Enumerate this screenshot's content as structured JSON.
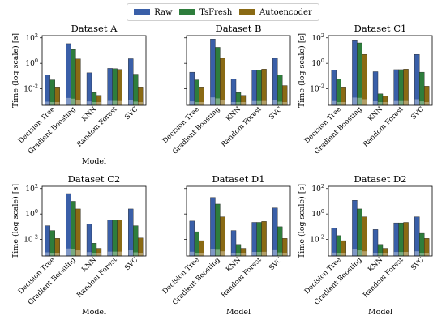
{
  "legend": [
    {
      "name": "Raw",
      "color": "#3a5fa8"
    },
    {
      "name": "TsFresh",
      "color": "#2e7d3c"
    },
    {
      "name": "Autoencoder",
      "color": "#8a6a14"
    }
  ],
  "chart_data": [
    {
      "type": "bar",
      "title": "Dataset A",
      "xlabel": "Model",
      "ylabel": "Time (log scale) [s]",
      "yscale": "log",
      "ylim": [
        0.0005,
        150
      ],
      "yticks": [
        "10^{-2}",
        "10^{0}",
        "10^{2}"
      ],
      "categories": [
        "Decision Tree",
        "Gradient Boosting",
        "KNN",
        "Random Forest",
        "SVC"
      ],
      "series": [
        {
          "name": "Raw",
          "values": [
            0.12,
            35,
            0.18,
            0.4,
            2.3
          ]
        },
        {
          "name": "TsFresh",
          "values": [
            0.05,
            12,
            0.005,
            0.38,
            0.14
          ]
        },
        {
          "name": "Autoencoder",
          "values": [
            0.012,
            2.2,
            0.003,
            0.33,
            0.012
          ]
        }
      ]
    },
    {
      "type": "bar",
      "title": "Dataset B",
      "xlabel": "",
      "ylabel": "",
      "yscale": "log",
      "ylim": [
        0.0005,
        150
      ],
      "yticks": [
        "",
        "",
        ""
      ],
      "categories": [
        "Decision Tree",
        "Gradient Boosting",
        "KNN",
        "Random Forest",
        "SVC"
      ],
      "series": [
        {
          "name": "Raw",
          "values": [
            0.2,
            80,
            0.06,
            0.3,
            2.5
          ]
        },
        {
          "name": "TsFresh",
          "values": [
            0.05,
            18,
            0.005,
            0.3,
            0.12
          ]
        },
        {
          "name": "Autoencoder",
          "values": [
            0.012,
            2.5,
            0.003,
            0.35,
            0.018
          ]
        }
      ]
    },
    {
      "type": "bar",
      "title": "Dataset C1",
      "xlabel": "",
      "ylabel": "Time (log scale) [s]",
      "yscale": "log",
      "ylim": [
        0.0005,
        150
      ],
      "yticks": [
        "10^{-2}",
        "10^{0}",
        "10^{2}"
      ],
      "categories": [
        "Decision Tree",
        "Gradient Boosting",
        "KNN",
        "Random Forest",
        "SVC"
      ],
      "series": [
        {
          "name": "Raw",
          "values": [
            0.3,
            60,
            0.22,
            0.32,
            5
          ]
        },
        {
          "name": "TsFresh",
          "values": [
            0.06,
            40,
            0.004,
            0.32,
            0.2
          ]
        },
        {
          "name": "Autoencoder",
          "values": [
            0.012,
            5,
            0.0028,
            0.35,
            0.016
          ]
        }
      ]
    },
    {
      "type": "bar",
      "title": "Dataset C2",
      "xlabel": "Model",
      "ylabel": "Time (log scale) [s]",
      "yscale": "log",
      "ylim": [
        0.0005,
        150
      ],
      "yticks": [
        "10^{-2}",
        "10^{0}",
        "10^{2}"
      ],
      "categories": [
        "Decision Tree",
        "Gradient Boosting",
        "KNN",
        "Random Forest",
        "SVC"
      ],
      "series": [
        {
          "name": "Raw",
          "values": [
            0.12,
            40,
            0.16,
            0.35,
            2.5
          ]
        },
        {
          "name": "TsFresh",
          "values": [
            0.05,
            10,
            0.005,
            0.35,
            0.12
          ]
        },
        {
          "name": "Autoencoder",
          "values": [
            0.012,
            2.5,
            0.002,
            0.35,
            0.013
          ]
        }
      ]
    },
    {
      "type": "bar",
      "title": "Dataset D1",
      "xlabel": "Model",
      "ylabel": "",
      "yscale": "log",
      "ylim": [
        0.0005,
        150
      ],
      "yticks": [
        "",
        "",
        ""
      ],
      "categories": [
        "Decision Tree",
        "Gradient Boosting",
        "KNN",
        "Random Forest",
        "SVC"
      ],
      "series": [
        {
          "name": "Raw",
          "values": [
            0.28,
            20,
            0.05,
            0.22,
            3
          ]
        },
        {
          "name": "TsFresh",
          "values": [
            0.04,
            6,
            0.004,
            0.22,
            0.1
          ]
        },
        {
          "name": "Autoencoder",
          "values": [
            0.008,
            0.6,
            0.002,
            0.26,
            0.012
          ]
        }
      ]
    },
    {
      "type": "bar",
      "title": "Dataset D2",
      "xlabel": "Model",
      "ylabel": "Time (log scale) [s]",
      "yscale": "log",
      "ylim": [
        0.0005,
        150
      ],
      "yticks": [
        "10^{-2}",
        "10^{0}",
        "10^{2}"
      ],
      "categories": [
        "Decision Tree",
        "Gradient Boosting",
        "KNN",
        "Random Forest",
        "SVC"
      ],
      "series": [
        {
          "name": "Raw",
          "values": [
            0.08,
            12,
            0.06,
            0.2,
            0.6
          ]
        },
        {
          "name": "TsFresh",
          "values": [
            0.02,
            2.5,
            0.004,
            0.2,
            0.03
          ]
        },
        {
          "name": "Autoencoder",
          "values": [
            0.008,
            0.6,
            0.002,
            0.22,
            0.012
          ]
        }
      ]
    }
  ]
}
